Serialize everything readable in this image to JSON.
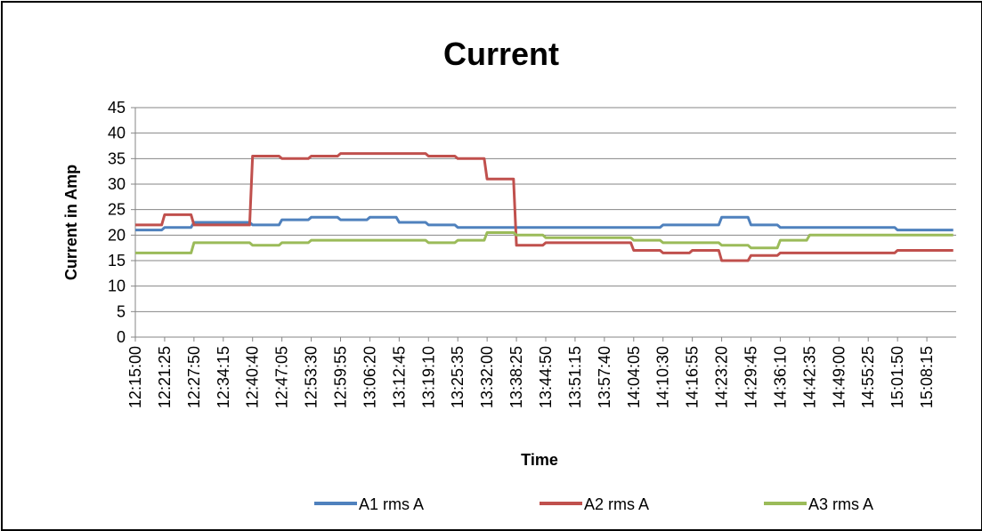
{
  "chart_data": {
    "type": "line",
    "title": "Current",
    "xlabel": "Time",
    "ylabel": "Current in Amp",
    "ylim": [
      0,
      45
    ],
    "yticks": [
      0,
      5,
      10,
      15,
      20,
      25,
      30,
      35,
      40,
      45
    ],
    "grid": true,
    "legend_position": "bottom",
    "categories": [
      "12:15:00",
      "12:21:25",
      "12:27:50",
      "12:34:15",
      "12:40:40",
      "12:47:05",
      "12:53:30",
      "12:59:55",
      "13:06:20",
      "13:12:45",
      "13:19:10",
      "13:25:35",
      "13:32:00",
      "13:38:25",
      "13:44:50",
      "13:51:15",
      "13:57:40",
      "14:04:05",
      "14:10:30",
      "14:16:55",
      "14:23:20",
      "14:29:45",
      "14:36:10",
      "14:42:35",
      "14:49:00",
      "14:55:25",
      "15:01:50",
      "15:08:15"
    ],
    "series": [
      {
        "name": "A1 rms A",
        "color": "#4F81BD",
        "values": [
          21,
          21.5,
          22.5,
          22.5,
          22,
          23,
          23.5,
          23,
          23.5,
          22.5,
          22,
          21.5,
          21.5,
          21.5,
          21.5,
          21.5,
          21.5,
          21.5,
          22,
          22,
          23.5,
          22,
          21.5,
          21.5,
          21.5,
          21.5,
          21,
          21
        ]
      },
      {
        "name": "A2 rms A",
        "color": "#C0504D",
        "values": [
          22,
          24,
          22,
          22,
          35.5,
          35,
          35.5,
          36,
          36,
          36,
          35.5,
          35,
          31,
          18,
          18.5,
          18.5,
          18.5,
          17,
          16.5,
          17,
          15,
          16,
          16.5,
          16.5,
          16.5,
          16.5,
          17,
          17
        ]
      },
      {
        "name": "A3 rms A",
        "color": "#9BBB59",
        "values": [
          16.5,
          16.5,
          18.5,
          18.5,
          18,
          18.5,
          19,
          19,
          19,
          19,
          18.5,
          19,
          20.5,
          20,
          19.5,
          19.5,
          19.5,
          19,
          18.5,
          18.5,
          18,
          17.5,
          19,
          20,
          20,
          20,
          20,
          20
        ]
      }
    ]
  }
}
